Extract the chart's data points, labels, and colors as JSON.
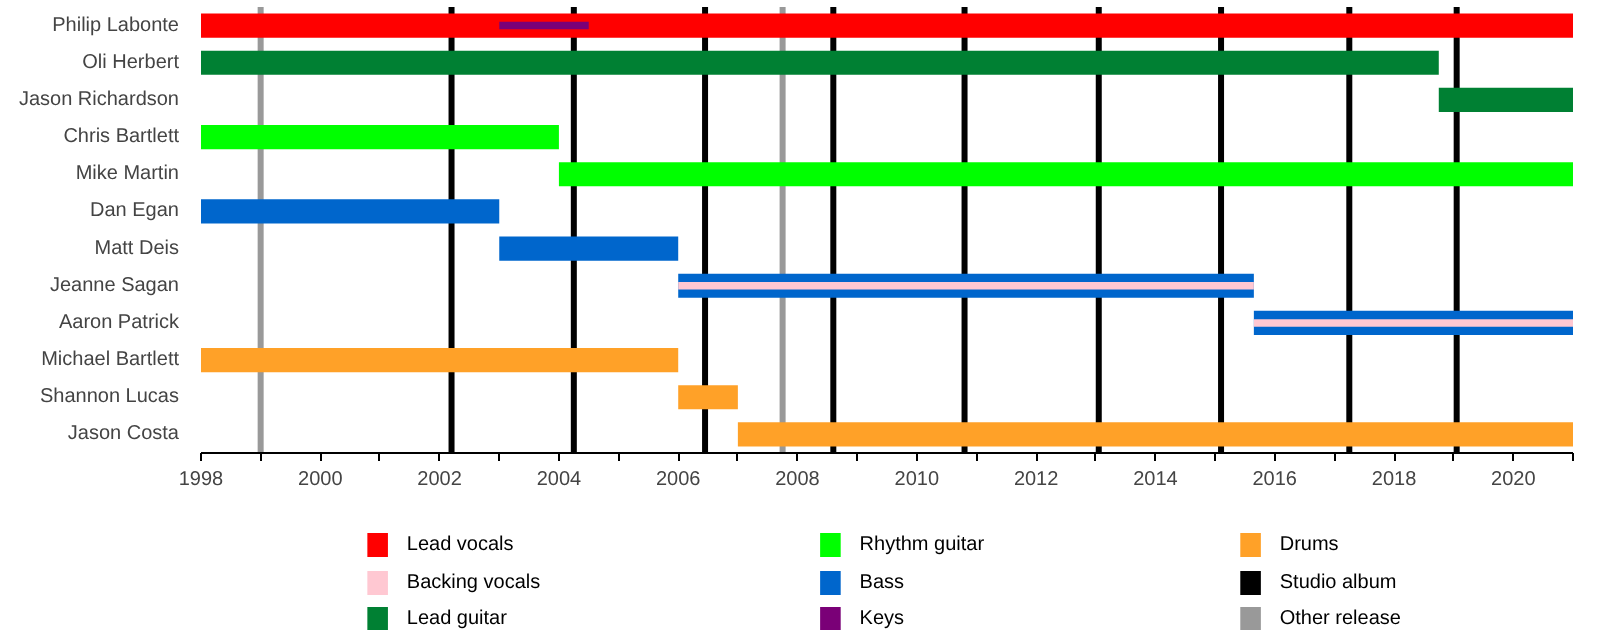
{
  "chart_data": {
    "type": "bar",
    "orientation": "horizontal",
    "categories": [
      "Philip Labonte",
      "Oli Herbert",
      "Jason Richardson",
      "Chris Bartlett",
      "Mike Martin",
      "Dan Egan",
      "Matt Deis",
      "Jeanne Sagan",
      "Aaron Patrick",
      "Michael Bartlett",
      "Shannon Lucas",
      "Jason Costa"
    ],
    "series": [
      {
        "name": "Lead vocals",
        "color": "#ff0000",
        "base": [
          1998,
          null,
          null,
          null,
          null,
          null,
          null,
          null,
          null,
          null,
          null,
          null
        ],
        "values": [
          23,
          null,
          null,
          null,
          null,
          null,
          null,
          null,
          null,
          null,
          null,
          null
        ]
      },
      {
        "name": "Backing vocals",
        "color": "#ffc8d2",
        "base": [
          null,
          null,
          null,
          null,
          null,
          null,
          null,
          2006,
          2015.65,
          null,
          null,
          null
        ],
        "values": [
          null,
          null,
          null,
          null,
          null,
          null,
          null,
          9.65,
          5.35,
          null,
          null,
          null
        ]
      },
      {
        "name": "Lead guitar",
        "color": "#008033",
        "base": [
          null,
          1998,
          2018.75,
          null,
          null,
          null,
          null,
          null,
          null,
          null,
          null,
          null
        ],
        "values": [
          null,
          20.75,
          2.25,
          null,
          null,
          null,
          null,
          null,
          null,
          null,
          null,
          null
        ]
      },
      {
        "name": "Rhythm guitar",
        "color": "#00ff00",
        "base": [
          null,
          null,
          null,
          1998,
          2004,
          null,
          null,
          null,
          null,
          null,
          null,
          null
        ],
        "values": [
          null,
          null,
          null,
          6,
          17,
          null,
          null,
          null,
          null,
          null,
          null,
          null
        ]
      },
      {
        "name": "Bass",
        "color": "#0066cc",
        "base": [
          null,
          null,
          null,
          null,
          null,
          1998,
          2003,
          2006,
          2015.65,
          null,
          null,
          null
        ],
        "values": [
          null,
          null,
          null,
          null,
          null,
          5,
          3,
          9.65,
          5.35,
          null,
          null,
          null
        ]
      },
      {
        "name": "Keys",
        "color": "#7a0077",
        "base": [
          2003,
          null,
          null,
          null,
          null,
          null,
          null,
          null,
          null,
          null,
          null,
          null
        ],
        "values": [
          1.5,
          null,
          null,
          null,
          null,
          null,
          null,
          null,
          null,
          null,
          null,
          null
        ]
      },
      {
        "name": "Drums",
        "color": "#ffa128",
        "base": [
          null,
          null,
          null,
          null,
          null,
          null,
          null,
          null,
          null,
          1998,
          2006,
          2007
        ],
        "values": [
          null,
          null,
          null,
          null,
          null,
          null,
          null,
          null,
          null,
          8,
          1,
          14
        ]
      }
    ],
    "ref_lines": [
      {
        "axis": "x",
        "value": 2002.2,
        "label": "Studio album",
        "color": "#000000"
      },
      {
        "axis": "x",
        "value": 2004.25,
        "color": "#000000"
      },
      {
        "axis": "x",
        "value": 2006.45,
        "color": "#000000"
      },
      {
        "axis": "x",
        "value": 2008.6,
        "color": "#000000"
      },
      {
        "axis": "x",
        "value": 2010.8,
        "color": "#000000"
      },
      {
        "axis": "x",
        "value": 2013.05,
        "color": "#000000"
      },
      {
        "axis": "x",
        "value": 2015.1,
        "color": "#000000"
      },
      {
        "axis": "x",
        "value": 2017.25,
        "color": "#000000"
      },
      {
        "axis": "x",
        "value": 2019.05,
        "color": "#000000"
      },
      {
        "axis": "x",
        "value": 1999,
        "label": "Other release",
        "color": "#999999"
      },
      {
        "axis": "x",
        "value": 2007.75,
        "color": "#999999"
      }
    ],
    "xlim": [
      1998,
      2021
    ],
    "xticks": [
      1998,
      {
        "value": 1999,
        "label": null
      },
      2000,
      {
        "value": 2001,
        "label": null
      },
      2002,
      {
        "value": 2003,
        "label": null
      },
      2004,
      {
        "value": 2005,
        "label": null
      },
      2006,
      {
        "value": 2007,
        "label": null
      },
      2008,
      {
        "value": 2009,
        "label": null
      },
      2010,
      {
        "value": 2011,
        "label": null
      },
      2012,
      {
        "value": 2013,
        "label": null
      },
      2014,
      {
        "value": 2015,
        "label": null
      },
      2016,
      {
        "value": 2017,
        "label": null
      },
      2018,
      {
        "value": 2019,
        "label": null
      },
      2020,
      {
        "value": 2021,
        "label": null
      }
    ],
    "grid": false,
    "legend": "bottom"
  }
}
